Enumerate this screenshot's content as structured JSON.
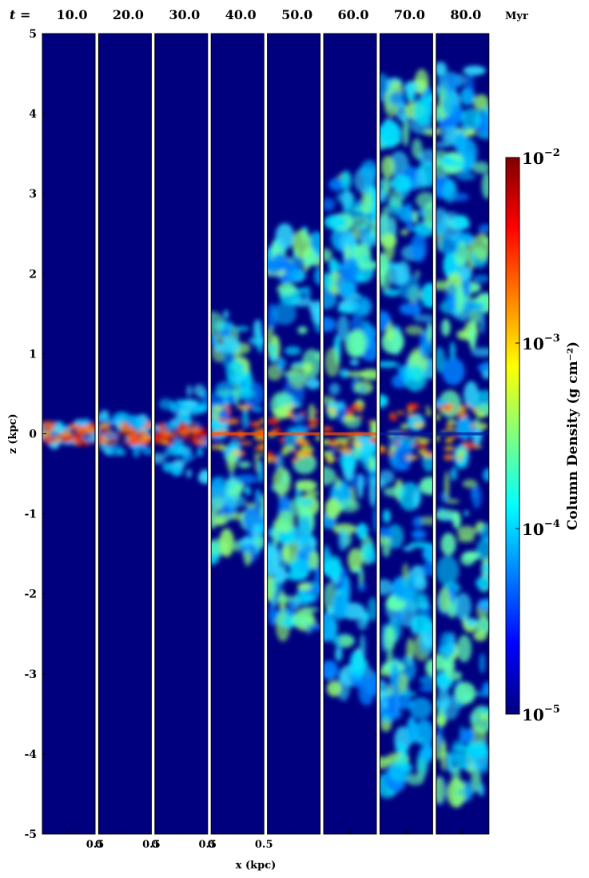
{
  "chart_data": {
    "type": "heatmap",
    "time_prefix": "t =",
    "time_unit": "Myr",
    "panels": [
      {
        "t": "10.0",
        "extent_kpc": 0.13
      },
      {
        "t": "20.0",
        "extent_kpc": 0.25
      },
      {
        "t": "30.0",
        "extent_kpc": 0.55
      },
      {
        "t": "40.0",
        "extent_kpc": 1.5
      },
      {
        "t": "50.0",
        "extent_kpc": 2.5
      },
      {
        "t": "60.0",
        "extent_kpc": 3.3
      },
      {
        "t": "70.0",
        "extent_kpc": 4.4
      },
      {
        "t": "80.0",
        "extent_kpc": 4.6
      }
    ],
    "xlabel": "x (kpc)",
    "x_ticks": [
      "0",
      "0.5",
      "0",
      "0.5",
      "0",
      "0.5",
      "0",
      "0.5"
    ],
    "ylabel": "z (kpc)",
    "ylim": [
      -5,
      5
    ],
    "y_ticks": [
      5,
      4,
      3,
      2,
      1,
      0,
      -1,
      -2,
      -3,
      -4,
      -5
    ],
    "y_tick_labels": [
      "5",
      "4",
      "3",
      "2",
      "1",
      "0",
      "-1",
      "-2",
      "-3",
      "-4",
      "-5"
    ],
    "colorbar": {
      "label": "Column Density (g cm⁻²)",
      "scale": "log",
      "range": [
        1e-05,
        0.01
      ],
      "tick_base": "10",
      "tick_exponents": [
        "−2",
        "−3",
        "−4",
        "−5"
      ],
      "colormap": "jet",
      "colors": [
        "#00007f",
        "#0000ff",
        "#007fff",
        "#00ffff",
        "#7fff7f",
        "#ffff00",
        "#ff7f00",
        "#ff0000",
        "#7f0000"
      ]
    },
    "background_color": "#00007f"
  }
}
